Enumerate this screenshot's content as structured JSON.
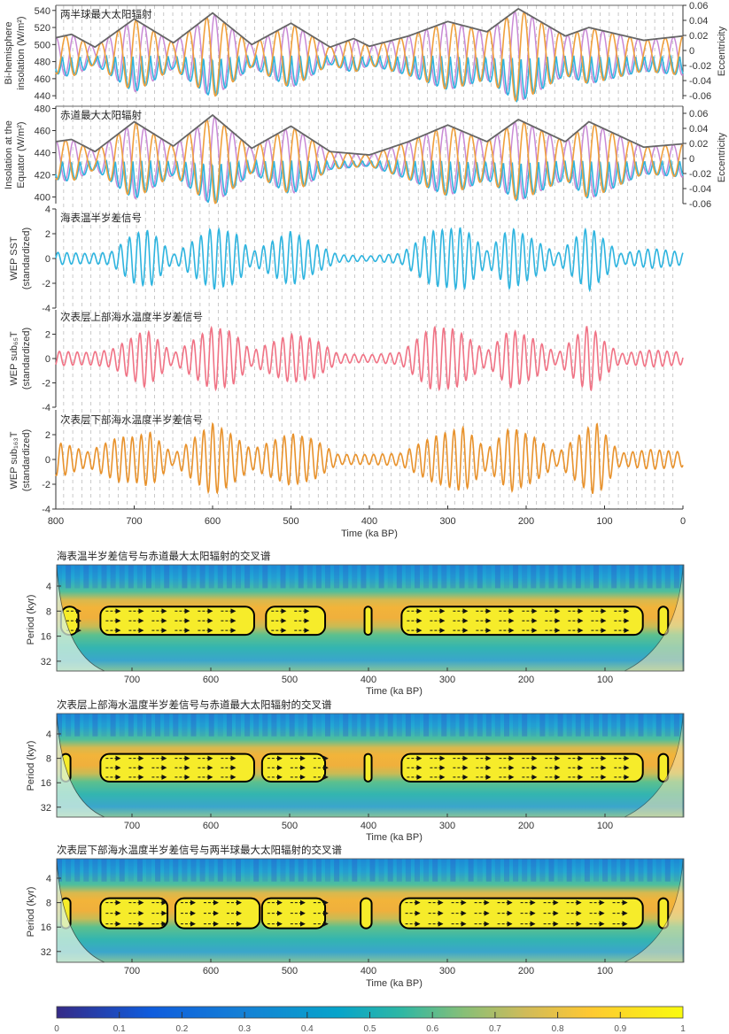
{
  "chart_data": [
    {
      "type": "line",
      "title": "两半球最大太阳辐射",
      "ylabel": [
        "Bi-hemisphere",
        "insolation (W/m²)"
      ],
      "y2label": "Eccentricity",
      "ylim": [
        436,
        546
      ],
      "yticks": [
        "540",
        "520",
        "500",
        "480",
        "460",
        "440"
      ],
      "y2lim": [
        -0.06,
        0.06
      ],
      "y2ticks": [
        "0.06",
        "0.04",
        "0.02",
        "0",
        "-0.02",
        "-0.04",
        "-0.06"
      ],
      "xlim": [
        800,
        0
      ],
      "center": 487,
      "envelope": {
        "t": [
          800,
          780,
          750,
          700,
          650,
          600,
          550,
          500,
          450,
          420,
          400,
          350,
          300,
          250,
          210,
          150,
          120,
          50,
          0
        ],
        "v": [
          508,
          512,
          497,
          530,
          502,
          537,
          500,
          525,
          497,
          507,
          498,
          510,
          527,
          515,
          542,
          510,
          520,
          505,
          510
        ]
      },
      "series": [
        {
          "name": "orange",
          "color": "#f0a03c"
        },
        {
          "name": "purple",
          "color": "#c98ad6"
        },
        {
          "name": "blue",
          "color": "#2eb4df"
        },
        {
          "name": "eccentricity envelope",
          "color": "#666666"
        }
      ]
    },
    {
      "type": "line",
      "title": "赤道最大太阳辐射",
      "ylabel": [
        "Insolation at the",
        "Equator (W/m²)"
      ],
      "y2label": "Eccentricity",
      "ylim": [
        394,
        482
      ],
      "yticks": [
        "480",
        "460",
        "440",
        "420",
        "400"
      ],
      "y2lim": [
        -0.06,
        0.06
      ],
      "y2ticks": [
        "0.06",
        "0.04",
        "0.02",
        "0",
        "-0.02",
        "-0.04",
        "-0.06"
      ],
      "xlim": [
        800,
        0
      ],
      "center": 433,
      "envelope": {
        "t": [
          800,
          780,
          750,
          700,
          650,
          600,
          550,
          500,
          450,
          400,
          350,
          300,
          250,
          210,
          150,
          120,
          50,
          0
        ],
        "v": [
          450,
          452,
          441,
          468,
          446,
          474,
          444,
          464,
          441,
          438,
          450,
          465,
          450,
          470,
          450,
          468,
          445,
          448
        ]
      },
      "series": [
        {
          "name": "orange",
          "color": "#f0a03c"
        },
        {
          "name": "purple",
          "color": "#c98ad6"
        },
        {
          "name": "blue",
          "color": "#2eb4df"
        },
        {
          "name": "eccentricity envelope",
          "color": "#666666"
        }
      ]
    },
    {
      "type": "line",
      "title": "海表温半岁差信号",
      "ylabel": [
        "WEP SST",
        "(standardized)"
      ],
      "ylim": [
        -4,
        4
      ],
      "yticks": [
        "4",
        "2",
        "0",
        "-2",
        "-4"
      ],
      "xlim": [
        800,
        0
      ],
      "color": "#2eb4df",
      "envelope": {
        "t": [
          800,
          760,
          730,
          700,
          680,
          650,
          600,
          570,
          550,
          500,
          470,
          440,
          400,
          360,
          320,
          280,
          250,
          220,
          190,
          160,
          120,
          100,
          80,
          40,
          0
        ],
        "v": [
          0.5,
          0.4,
          0.5,
          2.0,
          2.3,
          0.3,
          2.5,
          2.0,
          0.5,
          2.2,
          1.2,
          0.3,
          0.2,
          0.4,
          2.2,
          2.5,
          0.6,
          2.5,
          1.5,
          0.4,
          2.6,
          1.5,
          0.4,
          0.8,
          0.5
        ]
      }
    },
    {
      "type": "line",
      "title": "次表层上部海水温度半岁差信号",
      "ylabel": [
        "WEP sub₆₅T",
        "(standardized)"
      ],
      "ylim": [
        -4,
        4
      ],
      "yticks": [
        "2",
        "0",
        "-2",
        "-4"
      ],
      "xlim": [
        800,
        0
      ],
      "color": "#f07385",
      "envelope": {
        "t": [
          800,
          760,
          730,
          700,
          685,
          650,
          600,
          575,
          550,
          500,
          470,
          440,
          400,
          360,
          320,
          290,
          250,
          220,
          190,
          160,
          120,
          100,
          80,
          40,
          0
        ],
        "v": [
          0.6,
          0.5,
          0.7,
          1.8,
          2.4,
          0.4,
          2.6,
          2.2,
          0.6,
          2.0,
          1.6,
          0.4,
          0.3,
          0.5,
          2.6,
          2.4,
          0.6,
          2.4,
          1.6,
          0.4,
          2.8,
          1.4,
          0.4,
          0.7,
          0.5
        ]
      }
    },
    {
      "type": "line",
      "title": "次表层下部海水温度半岁差信号",
      "ylabel": [
        "WEP sub₁₆₃T",
        "(standardized)"
      ],
      "ylim": [
        -4,
        4
      ],
      "yticks": [
        "2",
        "0",
        "-2",
        "-4"
      ],
      "xlim": [
        800,
        0
      ],
      "color": "#e8922c",
      "xticks": [
        "800",
        "700",
        "600",
        "500",
        "400",
        "300",
        "200",
        "100",
        "0"
      ],
      "xlabel": "Time (ka BP)",
      "envelope": {
        "t": [
          800,
          790,
          760,
          720,
          700,
          680,
          650,
          600,
          580,
          550,
          500,
          470,
          440,
          400,
          360,
          320,
          280,
          250,
          220,
          190,
          160,
          120,
          110,
          80,
          40,
          0
        ],
        "v": [
          1.3,
          1.3,
          0.6,
          1.8,
          1.8,
          2.2,
          0.4,
          2.9,
          2.2,
          0.8,
          2.1,
          1.6,
          0.4,
          0.4,
          0.5,
          1.8,
          2.6,
          0.8,
          2.6,
          1.8,
          0.5,
          2.6,
          2.9,
          0.5,
          0.8,
          0.6
        ]
      }
    },
    {
      "type": "heatmap",
      "title": "海表温半岁差信号与赤道最大太阳辐射的交叉谱",
      "ylabel": "Period (kyr)",
      "yticks": [
        "4",
        "8",
        "16",
        "32"
      ],
      "xticks": [
        "700",
        "600",
        "500",
        "400",
        "300",
        "200",
        "100"
      ],
      "xlabel": "Time (ka BP)",
      "significant_regions": [
        [
          790,
          768
        ],
        [
          740,
          545
        ],
        [
          530,
          455
        ],
        [
          405,
          396
        ],
        [
          358,
          52
        ],
        [
          32,
          20
        ]
      ],
      "band_period_kyr": [
        8,
        14
      ]
    },
    {
      "type": "heatmap",
      "title": "次表层上部海水温度半岁差信号与赤道最大太阳辐射的交叉谱",
      "ylabel": "Period (kyr)",
      "yticks": [
        "4",
        "8",
        "16",
        "32"
      ],
      "xticks": [
        "700",
        "600",
        "500",
        "400",
        "300",
        "200",
        "100"
      ],
      "xlabel": "Time (ka BP)",
      "significant_regions": [
        [
          790,
          778
        ],
        [
          740,
          545
        ],
        [
          535,
          455
        ],
        [
          405,
          396
        ],
        [
          358,
          52
        ],
        [
          32,
          20
        ]
      ],
      "band_period_kyr": [
        8,
        14
      ]
    },
    {
      "type": "heatmap",
      "title": "次表层下部海水温度半岁差信号与两半球最大太阳辐射的交叉谱",
      "ylabel": "Period (kyr)",
      "yticks": [
        "4",
        "8",
        "16",
        "32"
      ],
      "xticks": [
        "700",
        "600",
        "500",
        "400",
        "300",
        "200",
        "100"
      ],
      "xlabel": "Time (ka BP)",
      "significant_regions": [
        [
          790,
          778
        ],
        [
          740,
          655
        ],
        [
          645,
          538
        ],
        [
          535,
          455
        ],
        [
          410,
          396
        ],
        [
          360,
          52
        ],
        [
          32,
          20
        ]
      ],
      "band_period_kyr": [
        8,
        15
      ]
    }
  ],
  "colorbar": {
    "ticks": [
      "0",
      "0.1",
      "0.2",
      "0.3",
      "0.4",
      "0.5",
      "0.6",
      "0.7",
      "0.8",
      "0.9",
      "1"
    ],
    "colors": [
      "#352a87",
      "#0f5cdd",
      "#1481d6",
      "#06a4ca",
      "#2eb7a4",
      "#87bf77",
      "#d1bb59",
      "#fec832",
      "#f9fb0e"
    ]
  }
}
